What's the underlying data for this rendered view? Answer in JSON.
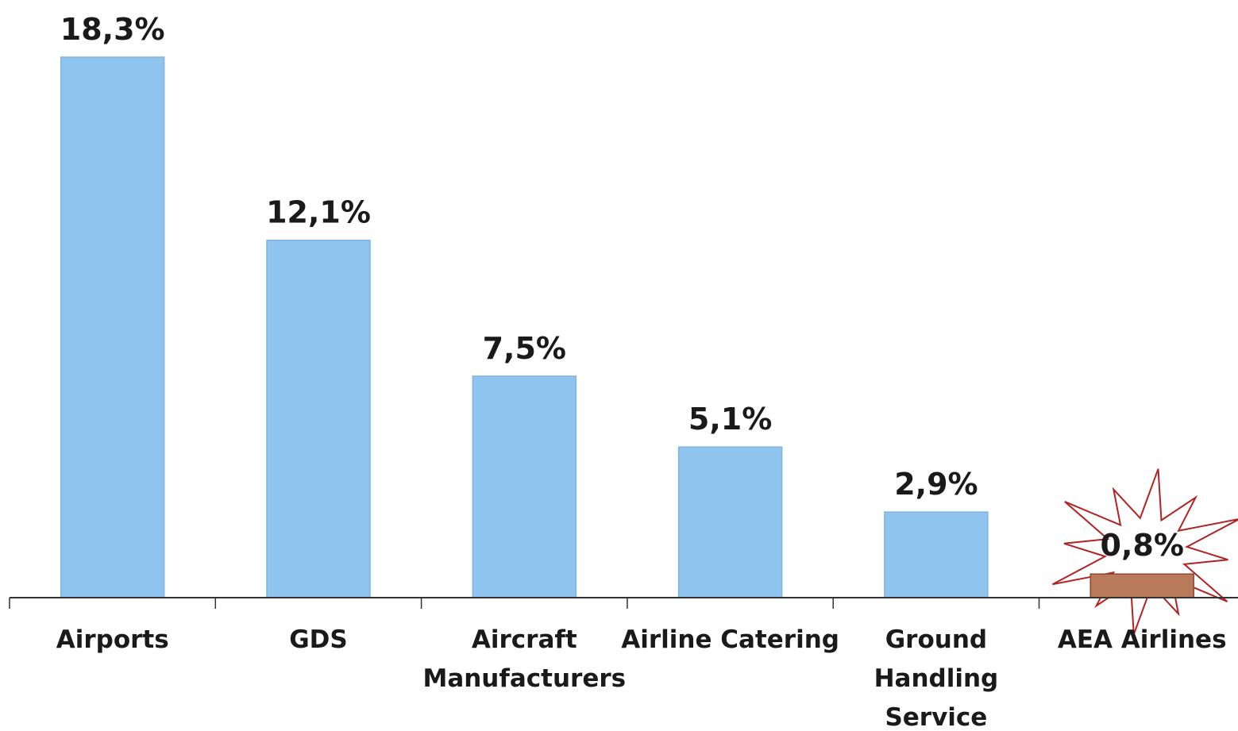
{
  "chart_data": {
    "type": "bar",
    "categories": [
      [
        "Airports"
      ],
      [
        "GDS"
      ],
      [
        "Aircraft",
        "Manufacturers"
      ],
      [
        "Airline Catering"
      ],
      [
        "Ground",
        "Handling",
        "Service"
      ],
      [
        "AEA Airlines"
      ]
    ],
    "values": [
      18.3,
      12.1,
      7.5,
      5.1,
      2.9,
      0.8
    ],
    "value_labels": [
      "18,3%",
      "12,1%",
      "7,5%",
      "5,1%",
      "2,9%",
      "0,8%"
    ],
    "highlight_index": 5,
    "highlight_shape": "starburst",
    "colors": {
      "bar": "#8ec4ee",
      "bar_border": "#7fb5e0",
      "highlight_bar": "#b97a5c",
      "highlight_border": "#8a4a2e",
      "starburst": "#b22222",
      "axis": "#333333"
    },
    "ylim": [
      0,
      18.3
    ],
    "grid": false,
    "legend": "none"
  }
}
